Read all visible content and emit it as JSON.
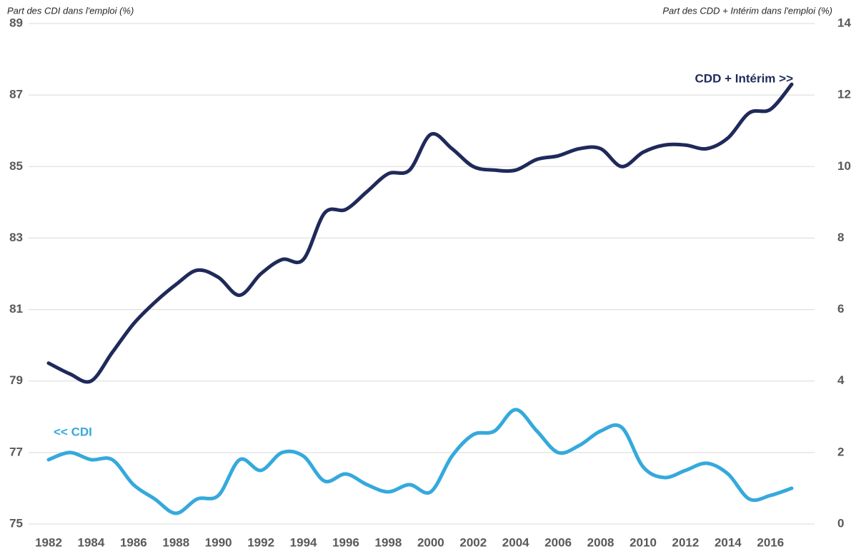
{
  "chart_data": {
    "type": "line",
    "y_label": "Part des CDI dans l'emploi  (%)",
    "y2_label": "Part des CDD + Intérim dans l'emploi  (%)",
    "annotations": [
      "<< CDI",
      "CDD + Intérim >>"
    ],
    "x": [
      1982,
      1983,
      1984,
      1985,
      1986,
      1987,
      1988,
      1989,
      1990,
      1991,
      1992,
      1993,
      1994,
      1995,
      1996,
      1997,
      1998,
      1999,
      2000,
      2001,
      2002,
      2003,
      2004,
      2005,
      2006,
      2007,
      2008,
      2009,
      2010,
      2011,
      2012,
      2013,
      2014,
      2015,
      2016,
      2017
    ],
    "series": [
      {
        "name": "CDI",
        "color": "#35a9dc",
        "axis": "y",
        "values": [
          76.8,
          77.0,
          76.8,
          76.8,
          76.1,
          75.7,
          75.3,
          75.7,
          75.8,
          76.8,
          76.5,
          77.0,
          76.9,
          76.2,
          76.4,
          76.1,
          75.9,
          76.1,
          75.9,
          76.9,
          77.5,
          77.6,
          78.2,
          77.6,
          77.0,
          77.2,
          77.6,
          77.7,
          76.6,
          76.3,
          76.5,
          76.7,
          76.4,
          75.7,
          75.8,
          76.0
        ]
      },
      {
        "name": "CDD + Intérim",
        "color": "#1f2a5a",
        "axis": "y2",
        "values": [
          4.5,
          4.2,
          4.0,
          4.8,
          5.6,
          6.2,
          6.7,
          7.1,
          6.9,
          6.4,
          7.0,
          7.4,
          7.4,
          8.7,
          8.8,
          9.3,
          9.8,
          9.9,
          10.9,
          10.5,
          10.0,
          9.9,
          9.9,
          10.2,
          10.3,
          10.5,
          10.5,
          10.0,
          10.4,
          10.6,
          10.6,
          10.5,
          10.8,
          11.5,
          11.6,
          12.3
        ]
      }
    ],
    "xlim": [
      1982,
      2017
    ],
    "xticks": [
      1982,
      1984,
      1986,
      1988,
      1990,
      1992,
      1994,
      1996,
      1998,
      2000,
      2002,
      2004,
      2006,
      2008,
      2010,
      2012,
      2014,
      2016
    ],
    "ylim": [
      75,
      89
    ],
    "yticks": [
      75,
      77,
      79,
      81,
      83,
      85,
      87,
      89
    ],
    "y2lim": [
      0,
      14
    ],
    "y2ticks": [
      0,
      2,
      4,
      6,
      8,
      10,
      12,
      14
    ],
    "grid": true
  }
}
